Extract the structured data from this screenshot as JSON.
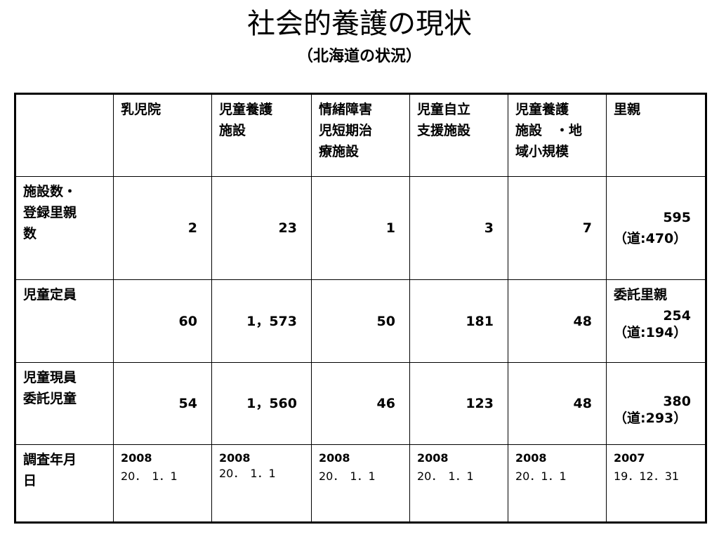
{
  "title": "社会的養護の現状",
  "subtitle": "（北海道の状況）",
  "table": {
    "headers": [
      "",
      "乳児院",
      "児童養護\n施設",
      "情緒障害\n児短期治\n療施設",
      "児童自立\n支援施設",
      "児童養護\n施設　・地\n域小規模",
      "里親"
    ],
    "rows": [
      {
        "label": "施設数・\n登録里親\n数",
        "values": [
          "2",
          "23",
          "1",
          "3",
          "7"
        ],
        "last": {
          "note": "",
          "value": "595",
          "hokkaido": "（道:470）"
        }
      },
      {
        "label": "児童定員",
        "values": [
          "60",
          "1，573",
          "50",
          "181",
          "48"
        ],
        "last": {
          "note": "委託里親",
          "value": "254",
          "hokkaido": "（道:194）"
        }
      },
      {
        "label": "児童現員\n委託児童",
        "values": [
          "54",
          "1，560",
          "46",
          "123",
          "48"
        ],
        "last": {
          "note": "",
          "value": "380",
          "hokkaido": "（道:293）"
        }
      }
    ],
    "survey": {
      "label": "調査年月\n日",
      "dates": [
        {
          "year": "2008",
          "date": "20．　1．1"
        },
        {
          "year": "2008",
          "date": "20．　1．1"
        },
        {
          "year": "2008",
          "date": "20．　1．1"
        },
        {
          "year": "2008",
          "date": "20．　1．1"
        },
        {
          "year": "2008",
          "date": "20．1．1"
        },
        {
          "year": "2007",
          "date": "19．12．31"
        }
      ]
    }
  }
}
